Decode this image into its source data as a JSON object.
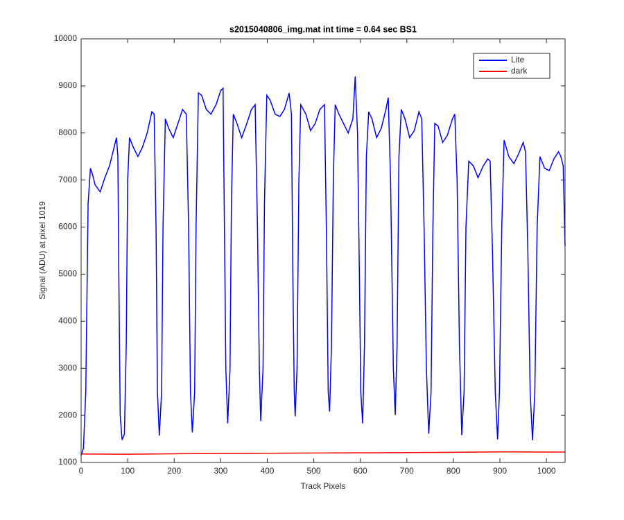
{
  "chart_data": {
    "type": "line",
    "title": "s2015040806_img.mat int time = 0.64 sec   BS1",
    "xlabel": "Track Pixels",
    "ylabel": "Signal (ADU) at pixel 1019",
    "xlim": [
      0,
      1040
    ],
    "xticks": [
      0,
      100,
      200,
      300,
      400,
      500,
      600,
      700,
      800,
      900,
      1000
    ],
    "ylim": [
      1000,
      10000
    ],
    "yticks": [
      1000,
      2000,
      3000,
      4000,
      5000,
      6000,
      7000,
      8000,
      9000,
      10000
    ],
    "legend": "upper right",
    "grid": false,
    "series": [
      {
        "name": "Lite",
        "color": "#0000ff",
        "x": [
          0,
          5,
          10,
          15,
          20,
          25,
          30,
          41,
          51,
          61,
          71,
          76,
          79,
          81,
          84,
          88,
          93,
          97,
          100,
          104,
          112,
          122,
          132,
          142,
          152,
          157,
          161,
          164,
          168,
          173,
          176,
          181,
          188,
          198,
          208,
          218,
          226,
          231,
          235,
          239,
          244,
          247,
          252,
          259,
          269,
          279,
          290,
          300,
          305,
          308,
          311,
          315,
          320,
          323,
          327,
          335,
          345,
          356,
          366,
          374,
          379,
          383,
          386,
          391,
          394,
          399,
          406,
          417,
          427,
          437,
          447,
          452,
          455,
          458,
          460,
          464,
          468,
          472,
          483,
          493,
          503,
          513,
          523,
          527,
          531,
          534,
          538,
          542,
          546,
          554,
          564,
          574,
          584,
          589,
          594,
          598,
          601,
          605,
          609,
          613,
          618,
          625,
          635,
          645,
          655,
          660,
          665,
          671,
          675,
          679,
          683,
          688,
          696,
          706,
          716,
          726,
          732,
          737,
          742,
          747,
          752,
          756,
          760,
          767,
          777,
          787,
          798,
          803,
          808,
          813,
          818,
          823,
          827,
          833,
          843,
          853,
          864,
          874,
          879,
          884,
          890,
          895,
          899,
          904,
          909,
          919,
          930,
          940,
          950,
          955,
          960,
          965,
          970,
          975,
          980,
          986,
          996,
          1006,
          1016,
          1026,
          1031,
          1036,
          1040
        ],
        "values": [
          1150,
          1300,
          2500,
          6500,
          7250,
          7100,
          6900,
          6750,
          7050,
          7300,
          7700,
          7900,
          7500,
          5000,
          2000,
          1480,
          1600,
          3500,
          7000,
          7900,
          7700,
          7500,
          7700,
          8000,
          8450,
          8400,
          6000,
          2500,
          1570,
          2500,
          6000,
          8300,
          8100,
          7900,
          8200,
          8500,
          8400,
          6000,
          2500,
          1640,
          2500,
          6000,
          8850,
          8800,
          8500,
          8400,
          8600,
          8900,
          8950,
          6000,
          3000,
          1830,
          3000,
          6500,
          8400,
          8200,
          7900,
          8200,
          8500,
          8600,
          6000,
          3000,
          1880,
          3000,
          6500,
          8800,
          8700,
          8400,
          8350,
          8500,
          8850,
          8400,
          5000,
          2500,
          1980,
          3000,
          7000,
          8600,
          8400,
          8050,
          8200,
          8500,
          8600,
          6000,
          2500,
          2080,
          3500,
          7000,
          8600,
          8400,
          8200,
          8000,
          8300,
          9200,
          8000,
          5000,
          2500,
          1830,
          3500,
          7500,
          8450,
          8300,
          7900,
          8100,
          8500,
          8750,
          7000,
          3000,
          2010,
          3500,
          7500,
          8500,
          8300,
          7900,
          8050,
          8450,
          8300,
          6000,
          3000,
          1610,
          2500,
          6000,
          8200,
          8150,
          7800,
          7950,
          8300,
          8400,
          7000,
          3500,
          1580,
          2500,
          6000,
          7400,
          7300,
          7050,
          7300,
          7450,
          7400,
          5500,
          2500,
          1490,
          2500,
          6000,
          7850,
          7500,
          7350,
          7550,
          7800,
          7600,
          5500,
          2500,
          1470,
          2500,
          6000,
          7500,
          7250,
          7200,
          7450,
          7600,
          7500,
          7300,
          5600
        ]
      },
      {
        "name": "dark",
        "color": "#ff0000",
        "x": [
          0,
          100,
          200,
          300,
          400,
          500,
          600,
          700,
          800,
          900,
          1000,
          1040
        ],
        "values": [
          1180,
          1175,
          1185,
          1190,
          1195,
          1200,
          1205,
          1210,
          1215,
          1225,
          1220,
          1220
        ]
      }
    ]
  }
}
